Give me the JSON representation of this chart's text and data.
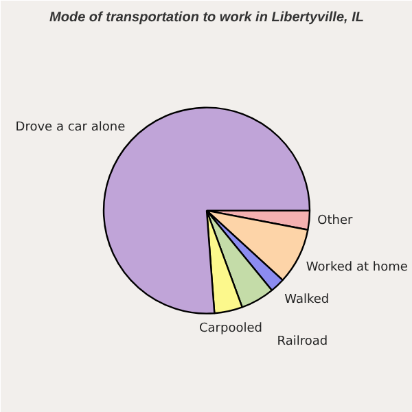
{
  "chart_data": {
    "type": "pie",
    "title": "Mode of transportation to work in Libertyville, IL",
    "categories": [
      "Other",
      "Worked at home",
      "Walked",
      "Railroad",
      "Carpooled",
      "Drove a car alone"
    ],
    "values": [
      3.0,
      8.8,
      2.3,
      5.3,
      4.4,
      76.2
    ],
    "colors": [
      "#f4b0b0",
      "#fdd4a8",
      "#8c8cf0",
      "#c4dca8",
      "#fcf88c",
      "#c0a4d8"
    ]
  }
}
